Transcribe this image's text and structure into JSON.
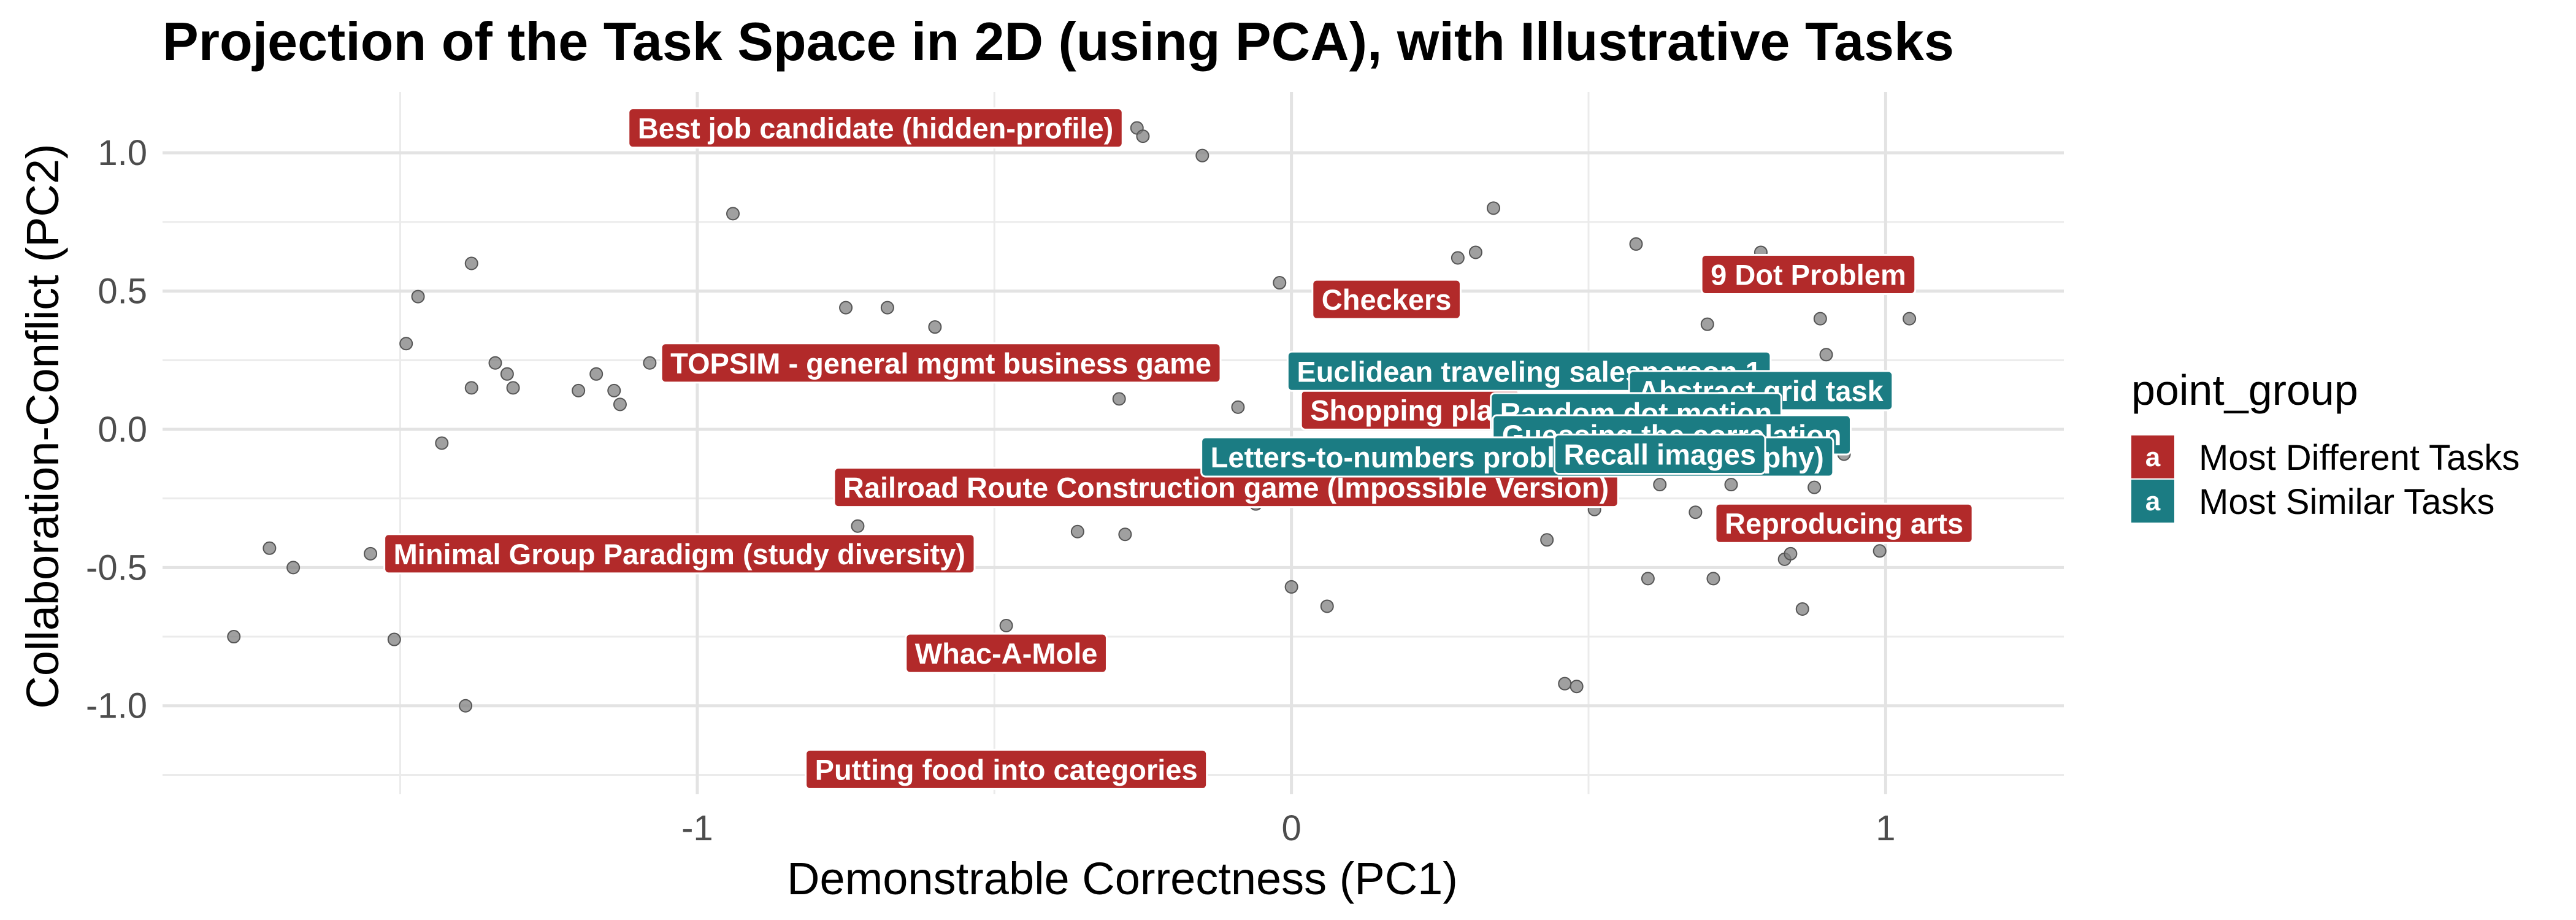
{
  "chart_data": {
    "type": "scatter",
    "title": "Projection of the Task Space in 2D (using PCA), with Illustrative Tasks",
    "xlabel": "Demonstrable Correctness (PC1)",
    "ylabel": "Collaboration-Conflict (PC2)",
    "xlim": [
      -1.9,
      1.3
    ],
    "ylim": [
      -1.32,
      1.22
    ],
    "x_ticks": [
      -1,
      0,
      1
    ],
    "x_tick_labels": [
      "-1",
      "0",
      "1"
    ],
    "y_ticks": [
      -1.0,
      -0.5,
      0.0,
      0.5,
      1.0
    ],
    "y_tick_labels": [
      "-1.0",
      "-0.5",
      "0.0",
      "0.5",
      "1.0"
    ],
    "grid": true,
    "legend": {
      "title": "point_group",
      "placement": "right",
      "key_glyph": "a",
      "entries": [
        {
          "label": "Most Different Tasks",
          "color": "#B22A2A"
        },
        {
          "label": "Most Similar Tasks",
          "color": "#1B7C83"
        }
      ]
    },
    "point_color": "#808080",
    "points": [
      [
        -1.78,
        -0.75
      ],
      [
        -1.72,
        -0.43
      ],
      [
        -1.68,
        -0.5
      ],
      [
        -1.55,
        -0.45
      ],
      [
        -1.51,
        -0.76
      ],
      [
        -1.49,
        0.31
      ],
      [
        -1.47,
        0.48
      ],
      [
        -1.43,
        -0.05
      ],
      [
        -1.38,
        0.15
      ],
      [
        -1.38,
        0.6
      ],
      [
        -1.39,
        -1.0
      ],
      [
        -1.34,
        0.24
      ],
      [
        -1.32,
        0.2
      ],
      [
        -1.31,
        0.15
      ],
      [
        -1.2,
        0.14
      ],
      [
        -1.17,
        0.2
      ],
      [
        -1.14,
        0.14
      ],
      [
        -1.13,
        0.09
      ],
      [
        -1.08,
        0.24
      ],
      [
        -0.94,
        0.78
      ],
      [
        -0.75,
        0.44
      ],
      [
        -0.75,
        -0.21
      ],
      [
        -0.73,
        -0.35
      ],
      [
        -0.68,
        0.44
      ],
      [
        -0.6,
        0.37
      ],
      [
        -0.48,
        -0.71
      ],
      [
        -0.36,
        -0.37
      ],
      [
        -0.29,
        0.11
      ],
      [
        -0.28,
        -0.38
      ],
      [
        -0.26,
        1.09
      ],
      [
        -0.25,
        1.06
      ],
      [
        -0.15,
        0.99
      ],
      [
        -0.09,
        0.08
      ],
      [
        -0.06,
        -0.27
      ],
      [
        -0.02,
        0.53
      ],
      [
        0.0,
        -0.57
      ],
      [
        0.06,
        -0.64
      ],
      [
        0.28,
        0.62
      ],
      [
        0.31,
        0.64
      ],
      [
        0.34,
        0.8
      ],
      [
        0.43,
        -0.4
      ],
      [
        0.46,
        -0.92
      ],
      [
        0.48,
        -0.93
      ],
      [
        0.51,
        -0.29
      ],
      [
        0.58,
        0.67
      ],
      [
        0.6,
        -0.54
      ],
      [
        0.62,
        -0.2
      ],
      [
        0.68,
        -0.3
      ],
      [
        0.7,
        0.38
      ],
      [
        0.71,
        -0.54
      ],
      [
        0.74,
        -0.2
      ],
      [
        0.79,
        0.64
      ],
      [
        0.83,
        -0.47
      ],
      [
        0.84,
        -0.45
      ],
      [
        0.86,
        -0.65
      ],
      [
        0.88,
        -0.21
      ],
      [
        0.89,
        0.4
      ],
      [
        0.9,
        0.27
      ],
      [
        0.92,
        0.14
      ],
      [
        0.93,
        -0.09
      ],
      [
        0.99,
        -0.44
      ],
      [
        1.04,
        0.4
      ],
      [
        0.28,
        -0.2
      ],
      [
        0.33,
        -0.05
      ],
      [
        0.36,
        0.02
      ],
      [
        0.52,
        -0.08
      ],
      [
        0.55,
        -0.1
      ],
      [
        0.66,
        0.1
      ]
    ],
    "labels": [
      {
        "text": "Best job candidate (hidden-profile)",
        "group": "Most Different Tasks",
        "x": -0.7,
        "y": 1.09
      },
      {
        "text": "Checkers",
        "group": "Most Different Tasks",
        "x": 0.16,
        "y": 0.47
      },
      {
        "text": "9 Dot Problem",
        "group": "Most Different Tasks",
        "x": 0.87,
        "y": 0.56
      },
      {
        "text": "TOPSIM - general mgmt business game",
        "group": "Most Different Tasks",
        "x": -0.59,
        "y": 0.24
      },
      {
        "text": "Shopping plan",
        "group": "Most Different Tasks",
        "x": 0.2,
        "y": 0.07
      },
      {
        "text": "Railroad Route Construction game (Impossible Version)",
        "group": "Most Different Tasks",
        "x": -0.11,
        "y": -0.21
      },
      {
        "text": "Minimal Group Paradigm (study diversity)",
        "group": "Most Different Tasks",
        "x": -1.03,
        "y": -0.45
      },
      {
        "text": "Reproducing arts",
        "group": "Most Different Tasks",
        "x": 0.93,
        "y": -0.34
      },
      {
        "text": "Whac-A-Mole",
        "group": "Most Different Tasks",
        "x": -0.48,
        "y": -0.81
      },
      {
        "text": "Putting food into categories",
        "group": "Most Different Tasks",
        "x": -0.48,
        "y": -1.23
      },
      {
        "text": "Euclidean traveling salesperson 1",
        "group": "Most Similar Tasks",
        "x": 0.4,
        "y": 0.21
      },
      {
        "text": "Abstract grid task",
        "group": "Most Similar Tasks",
        "x": 0.79,
        "y": 0.14
      },
      {
        "text": "Random dot motion",
        "group": "Most Similar Tasks",
        "x": 0.58,
        "y": 0.06
      },
      {
        "text": "Guessing the correlation",
        "group": "Most Similar Tasks",
        "x": 0.64,
        "y": -0.02
      },
      {
        "text": "Letters-to-numbers problems (cryptography)",
        "group": "Most Similar Tasks",
        "x": 0.38,
        "y": -0.1
      },
      {
        "text": "Recall images",
        "group": "Most Similar Tasks",
        "x": 0.62,
        "y": -0.09
      }
    ]
  }
}
